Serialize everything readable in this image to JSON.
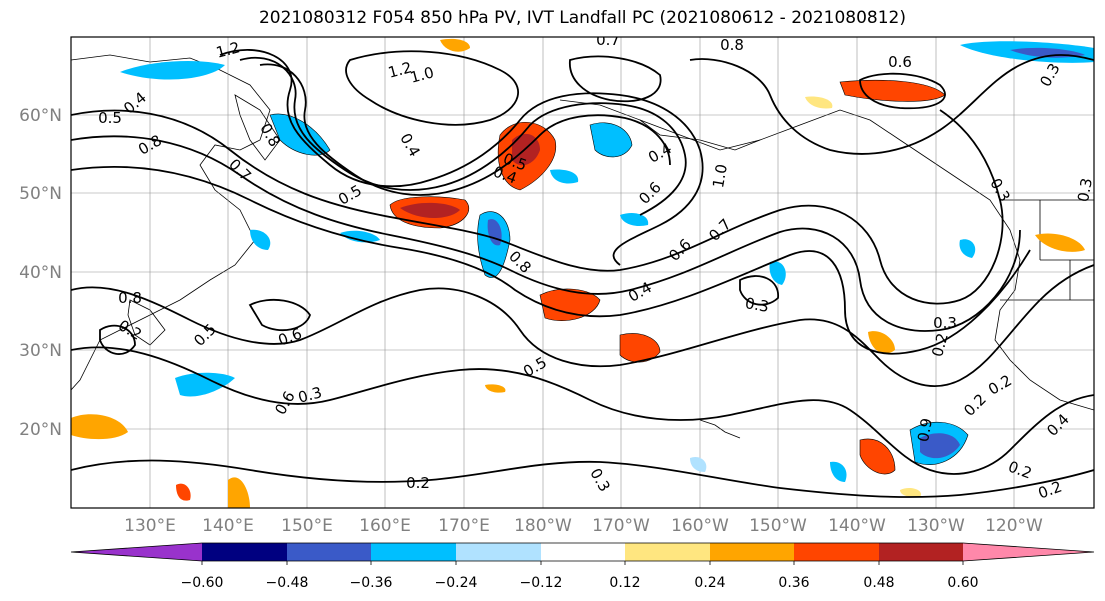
{
  "title": "2021080312 F054 850 hPa PV, IVT Landfall PC (2021080612 - 2021080812)",
  "map": {
    "projection": "PlateCarree",
    "lon_ticks": [
      "130°E",
      "140°E",
      "150°E",
      "160°E",
      "170°E",
      "180°W",
      "170°W",
      "160°W",
      "150°W",
      "140°W",
      "130°W",
      "120°W"
    ],
    "lat_ticks": [
      "60°N",
      "50°N",
      "40°N",
      "30°N",
      "20°N"
    ],
    "contour_color": "#000000",
    "grid": true,
    "contour_labels": [
      "1.2",
      "1.2",
      "1.0",
      "0.7",
      "0.8",
      "0.6",
      "0.3",
      "0.5",
      "0.4",
      "0.8",
      "0.8",
      "0.7",
      "0.5",
      "0.4",
      "0.5",
      "0.4",
      "0.4",
      "1.0",
      "0.6",
      "0.8",
      "0.7",
      "0.6",
      "0.3",
      "0.3",
      "0.4",
      "0.5",
      "0.6",
      "0.8",
      "0.3",
      "0.5",
      "0.6",
      "0.2",
      "0.3",
      "0.2",
      "0.2",
      "0.2",
      "0.3",
      "0.2",
      "0.4",
      "0.2",
      "0.9",
      "0.3",
      "0.2"
    ]
  },
  "colorbar": {
    "colors": [
      "#9932cc",
      "#000080",
      "#3a5ac8",
      "#00bfff",
      "#b0e2ff",
      "#ffffff",
      "#ffe680",
      "#ffa500",
      "#ff4500",
      "#b22222",
      "#ff88aa"
    ],
    "tick_labels": [
      "−0.60",
      "−0.48",
      "−0.36",
      "−0.24",
      "−0.12",
      "0.12",
      "0.24",
      "0.36",
      "0.48",
      "0.60"
    ],
    "extend": "both"
  }
}
